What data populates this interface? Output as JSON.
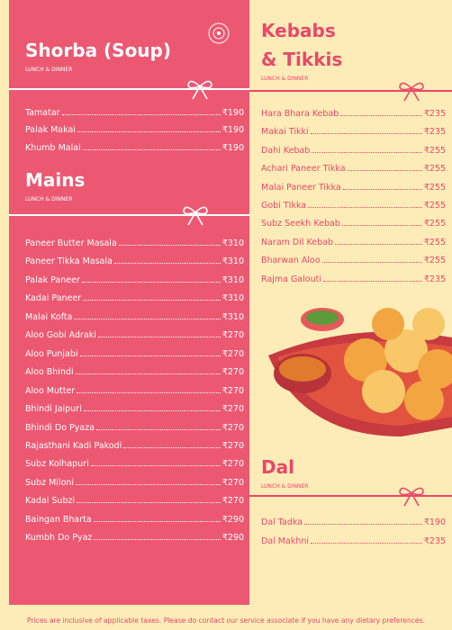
{
  "sections": [
    {
      "title": "Shorba (Soup)",
      "subtitle": "LUNCH & DINNER",
      "items": [
        {
          "name": "Tamatar",
          "price": "₹190"
        },
        {
          "name": "Palak Makai",
          "price": "₹190"
        },
        {
          "name": "Khumb Malai",
          "price": "₹190"
        }
      ]
    },
    {
      "title": "Mains",
      "subtitle": "LUNCH & DINNER",
      "items": [
        {
          "name": "Paneer Butter Masala",
          "price": "₹310"
        },
        {
          "name": "Paneer Tikka Masala",
          "price": "₹310"
        },
        {
          "name": "Palak Paneer",
          "price": "₹310"
        },
        {
          "name": "Kadai Paneer",
          "price": "₹310"
        },
        {
          "name": "Malai Kofta",
          "price": "₹310"
        },
        {
          "name": "Aloo Gobi Adraki",
          "price": "₹270"
        },
        {
          "name": "Aloo Punjabi",
          "price": "₹270"
        },
        {
          "name": "Aloo Bhindi",
          "price": "₹270"
        },
        {
          "name": "Aloo Mutter",
          "price": "₹270"
        },
        {
          "name": "Bhindi Jaipuri",
          "price": "₹270"
        },
        {
          "name": "Bhindi Do Pyaza",
          "price": "₹270"
        },
        {
          "name": "Rajasthani Kadi Pakodi",
          "price": "₹270"
        },
        {
          "name": "Subz Kolhapuri",
          "price": "₹270"
        },
        {
          "name": "Subz Miloni",
          "price": "₹270"
        },
        {
          "name": "Kadai Subzi",
          "price": "₹270"
        },
        {
          "name": "Baingan Bharta",
          "price": "₹290"
        },
        {
          "name": "Kumbh Do Pyaz",
          "price": "₹290"
        }
      ]
    },
    {
      "title": "Kebabs\n& Tikkis",
      "subtitle": "LUNCH & DINNER",
      "items": [
        {
          "name": "Hara Bhara Kebab",
          "price": "₹235"
        },
        {
          "name": "Makai Tikki",
          "price": "₹235"
        },
        {
          "name": "Dahi Kebab",
          "price": "₹255"
        },
        {
          "name": "Achari Paneer Tikka",
          "price": "₹255"
        },
        {
          "name": "Malai Paneer Tikka",
          "price": "₹255"
        },
        {
          "name": "Gobi TIkka",
          "price": "₹255"
        },
        {
          "name": "Subz Seekh Kebab",
          "price": "₹255"
        },
        {
          "name": "Naram Dil Kebab",
          "price": "₹255"
        },
        {
          "name": "Bharwan Aloo",
          "price": "₹255"
        },
        {
          "name": "Rajma Galouti",
          "price": "₹235"
        }
      ]
    },
    {
      "title": "Dal",
      "subtitle": "LUNCH & DINNER",
      "items": [
        {
          "name": "Dal Tadka",
          "price": "₹190"
        },
        {
          "name": "Dal Makhni",
          "price": "₹235"
        }
      ]
    }
  ],
  "footer": "Prices are inclusive of applicable taxes. Please do contact our service associate if you have any dietary preferences."
}
